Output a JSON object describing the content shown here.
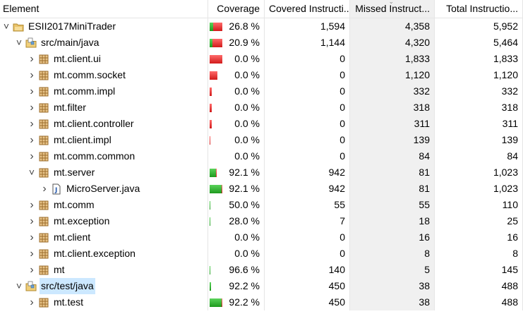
{
  "header": {
    "columns": [
      "Element",
      "Coverage",
      "Covered Instructi...",
      "Missed Instruct...",
      "Total Instructio..."
    ]
  },
  "rows": [
    {
      "indent": 0,
      "twisty": "expanded",
      "icon": "project-icon",
      "label": "ESII2017MiniTrader",
      "coverage": "26.8 %",
      "cov_frac": 0.268,
      "covered": "1,594",
      "missed": "4,358",
      "total": "5,952",
      "bar_share": 1.0
    },
    {
      "indent": 1,
      "twisty": "expanded",
      "icon": "source-folder-icon",
      "label": "src/main/java",
      "coverage": "20.9 %",
      "cov_frac": 0.209,
      "covered": "1,144",
      "missed": "4,320",
      "total": "5,464",
      "bar_share": 1.0
    },
    {
      "indent": 2,
      "twisty": "collapsed",
      "icon": "package-icon",
      "label": "mt.client.ui",
      "coverage": "0.0 %",
      "cov_frac": 0.0,
      "covered": "0",
      "missed": "1,833",
      "total": "1,833",
      "bar_share": 1.0
    },
    {
      "indent": 2,
      "twisty": "collapsed",
      "icon": "package-icon",
      "label": "mt.comm.socket",
      "coverage": "0.0 %",
      "cov_frac": 0.0,
      "covered": "0",
      "missed": "1,120",
      "total": "1,120",
      "bar_share": 0.61
    },
    {
      "indent": 2,
      "twisty": "collapsed",
      "icon": "package-icon",
      "label": "mt.comm.impl",
      "coverage": "0.0 %",
      "cov_frac": 0.0,
      "covered": "0",
      "missed": "332",
      "total": "332",
      "bar_share": 0.18
    },
    {
      "indent": 2,
      "twisty": "collapsed",
      "icon": "package-icon",
      "label": "mt.filter",
      "coverage": "0.0 %",
      "cov_frac": 0.0,
      "covered": "0",
      "missed": "318",
      "total": "318",
      "bar_share": 0.17
    },
    {
      "indent": 2,
      "twisty": "collapsed",
      "icon": "package-icon",
      "label": "mt.client.controller",
      "coverage": "0.0 %",
      "cov_frac": 0.0,
      "covered": "0",
      "missed": "311",
      "total": "311",
      "bar_share": 0.17
    },
    {
      "indent": 2,
      "twisty": "collapsed",
      "icon": "package-icon",
      "label": "mt.client.impl",
      "coverage": "0.0 %",
      "cov_frac": 0.0,
      "covered": "0",
      "missed": "139",
      "total": "139",
      "bar_share": 0.08
    },
    {
      "indent": 2,
      "twisty": "collapsed",
      "icon": "package-icon",
      "label": "mt.comm.common",
      "coverage": "0.0 %",
      "cov_frac": 0.0,
      "covered": "0",
      "missed": "84",
      "total": "84",
      "bar_share": 0.0
    },
    {
      "indent": 2,
      "twisty": "expanded",
      "icon": "package-icon",
      "label": "mt.server",
      "coverage": "92.1 %",
      "cov_frac": 0.921,
      "covered": "942",
      "missed": "81",
      "total": "1,023",
      "bar_share": 0.56
    },
    {
      "indent": 3,
      "twisty": "collapsed",
      "icon": "java-file-icon",
      "label": "MicroServer.java",
      "coverage": "92.1 %",
      "cov_frac": 0.921,
      "covered": "942",
      "missed": "81",
      "total": "1,023",
      "bar_share": 1.0
    },
    {
      "indent": 2,
      "twisty": "collapsed",
      "icon": "package-icon",
      "label": "mt.comm",
      "coverage": "50.0 %",
      "cov_frac": 0.5,
      "covered": "55",
      "missed": "55",
      "total": "110",
      "bar_share": 0.0
    },
    {
      "indent": 2,
      "twisty": "collapsed",
      "icon": "package-icon",
      "label": "mt.exception",
      "coverage": "28.0 %",
      "cov_frac": 0.28,
      "covered": "7",
      "missed": "18",
      "total": "25",
      "bar_share": 0.0
    },
    {
      "indent": 2,
      "twisty": "collapsed",
      "icon": "package-icon",
      "label": "mt.client",
      "coverage": "0.0 %",
      "cov_frac": 0.0,
      "covered": "0",
      "missed": "16",
      "total": "16",
      "bar_share": 0.0
    },
    {
      "indent": 2,
      "twisty": "collapsed",
      "icon": "package-icon",
      "label": "mt.client.exception",
      "coverage": "0.0 %",
      "cov_frac": 0.0,
      "covered": "0",
      "missed": "8",
      "total": "8",
      "bar_share": 0.0
    },
    {
      "indent": 2,
      "twisty": "collapsed",
      "icon": "package-icon",
      "label": "mt",
      "coverage": "96.6 %",
      "cov_frac": 0.966,
      "covered": "140",
      "missed": "5",
      "total": "145",
      "bar_share": 0.08
    },
    {
      "indent": 1,
      "twisty": "expanded",
      "icon": "source-folder-icon",
      "label": "src/test/java",
      "coverage": "92.2 %",
      "cov_frac": 0.922,
      "covered": "450",
      "missed": "38",
      "total": "488",
      "bar_share": 0.09,
      "selected": true
    },
    {
      "indent": 2,
      "twisty": "collapsed",
      "icon": "package-icon",
      "label": "mt.test",
      "coverage": "92.2 %",
      "cov_frac": 0.922,
      "covered": "450",
      "missed": "38",
      "total": "488",
      "bar_share": 1.0
    }
  ],
  "colors": {
    "covered": "#2db52d",
    "missed": "#e02020",
    "selection": "#cce8ff",
    "sorted_column": "#f0f0f0",
    "grid": "#e5e5e5"
  }
}
